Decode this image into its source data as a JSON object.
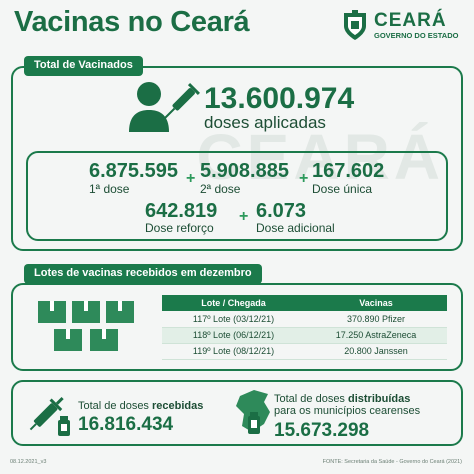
{
  "header": {
    "title": "Vacinas no Ceará",
    "logo_name": "CEARÁ",
    "logo_sub": "GOVERNO DO ESTADO"
  },
  "total": {
    "section_label": "Total de Vacinados",
    "applied_value": "13.600.974",
    "applied_label": "doses aplicadas",
    "doses": [
      {
        "value": "6.875.595",
        "label": "1ª dose"
      },
      {
        "value": "5.908.885",
        "label": "2ª dose"
      },
      {
        "value": "167.602",
        "label": "Dose única"
      },
      {
        "value": "642.819",
        "label": "Dose reforço"
      },
      {
        "value": "6.073",
        "label": "Dose adicional"
      }
    ],
    "plus_sign": "+"
  },
  "lotes": {
    "section_label": "Lotes de vacinas recebidos em dezembro",
    "columns": [
      "Lote / Chegada",
      "Vacinas"
    ],
    "rows": [
      [
        "117º Lote (03/12/21)",
        "370.890 Pfizer"
      ],
      [
        "118º Lote (06/12/21)",
        "17.250 AstraZeneca"
      ],
      [
        "119º Lote (08/12/21)",
        "20.800 Janssen"
      ]
    ]
  },
  "received": {
    "label_prefix": "Total de doses ",
    "label_bold": "recebidas",
    "value": "16.816.434"
  },
  "distributed": {
    "label_prefix": "Total de doses ",
    "label_bold": "distribuídas",
    "label_suffix": "para os municípios cearenses",
    "value": "15.673.298"
  },
  "footer": {
    "date": "08.12.2021_v3",
    "source": "FONTE: Secretaria da Saúde - Governo do Ceará (2021)"
  },
  "colors": {
    "primary": "#1b7a4b",
    "text": "#1d5a3c",
    "background": "#f4f6f5"
  },
  "icons": [
    "ceara-coat-of-arms-icon",
    "person-syringe-icon",
    "vaccine-boxes-icon",
    "syringe-vial-icon",
    "ceara-map-vial-icon"
  ]
}
